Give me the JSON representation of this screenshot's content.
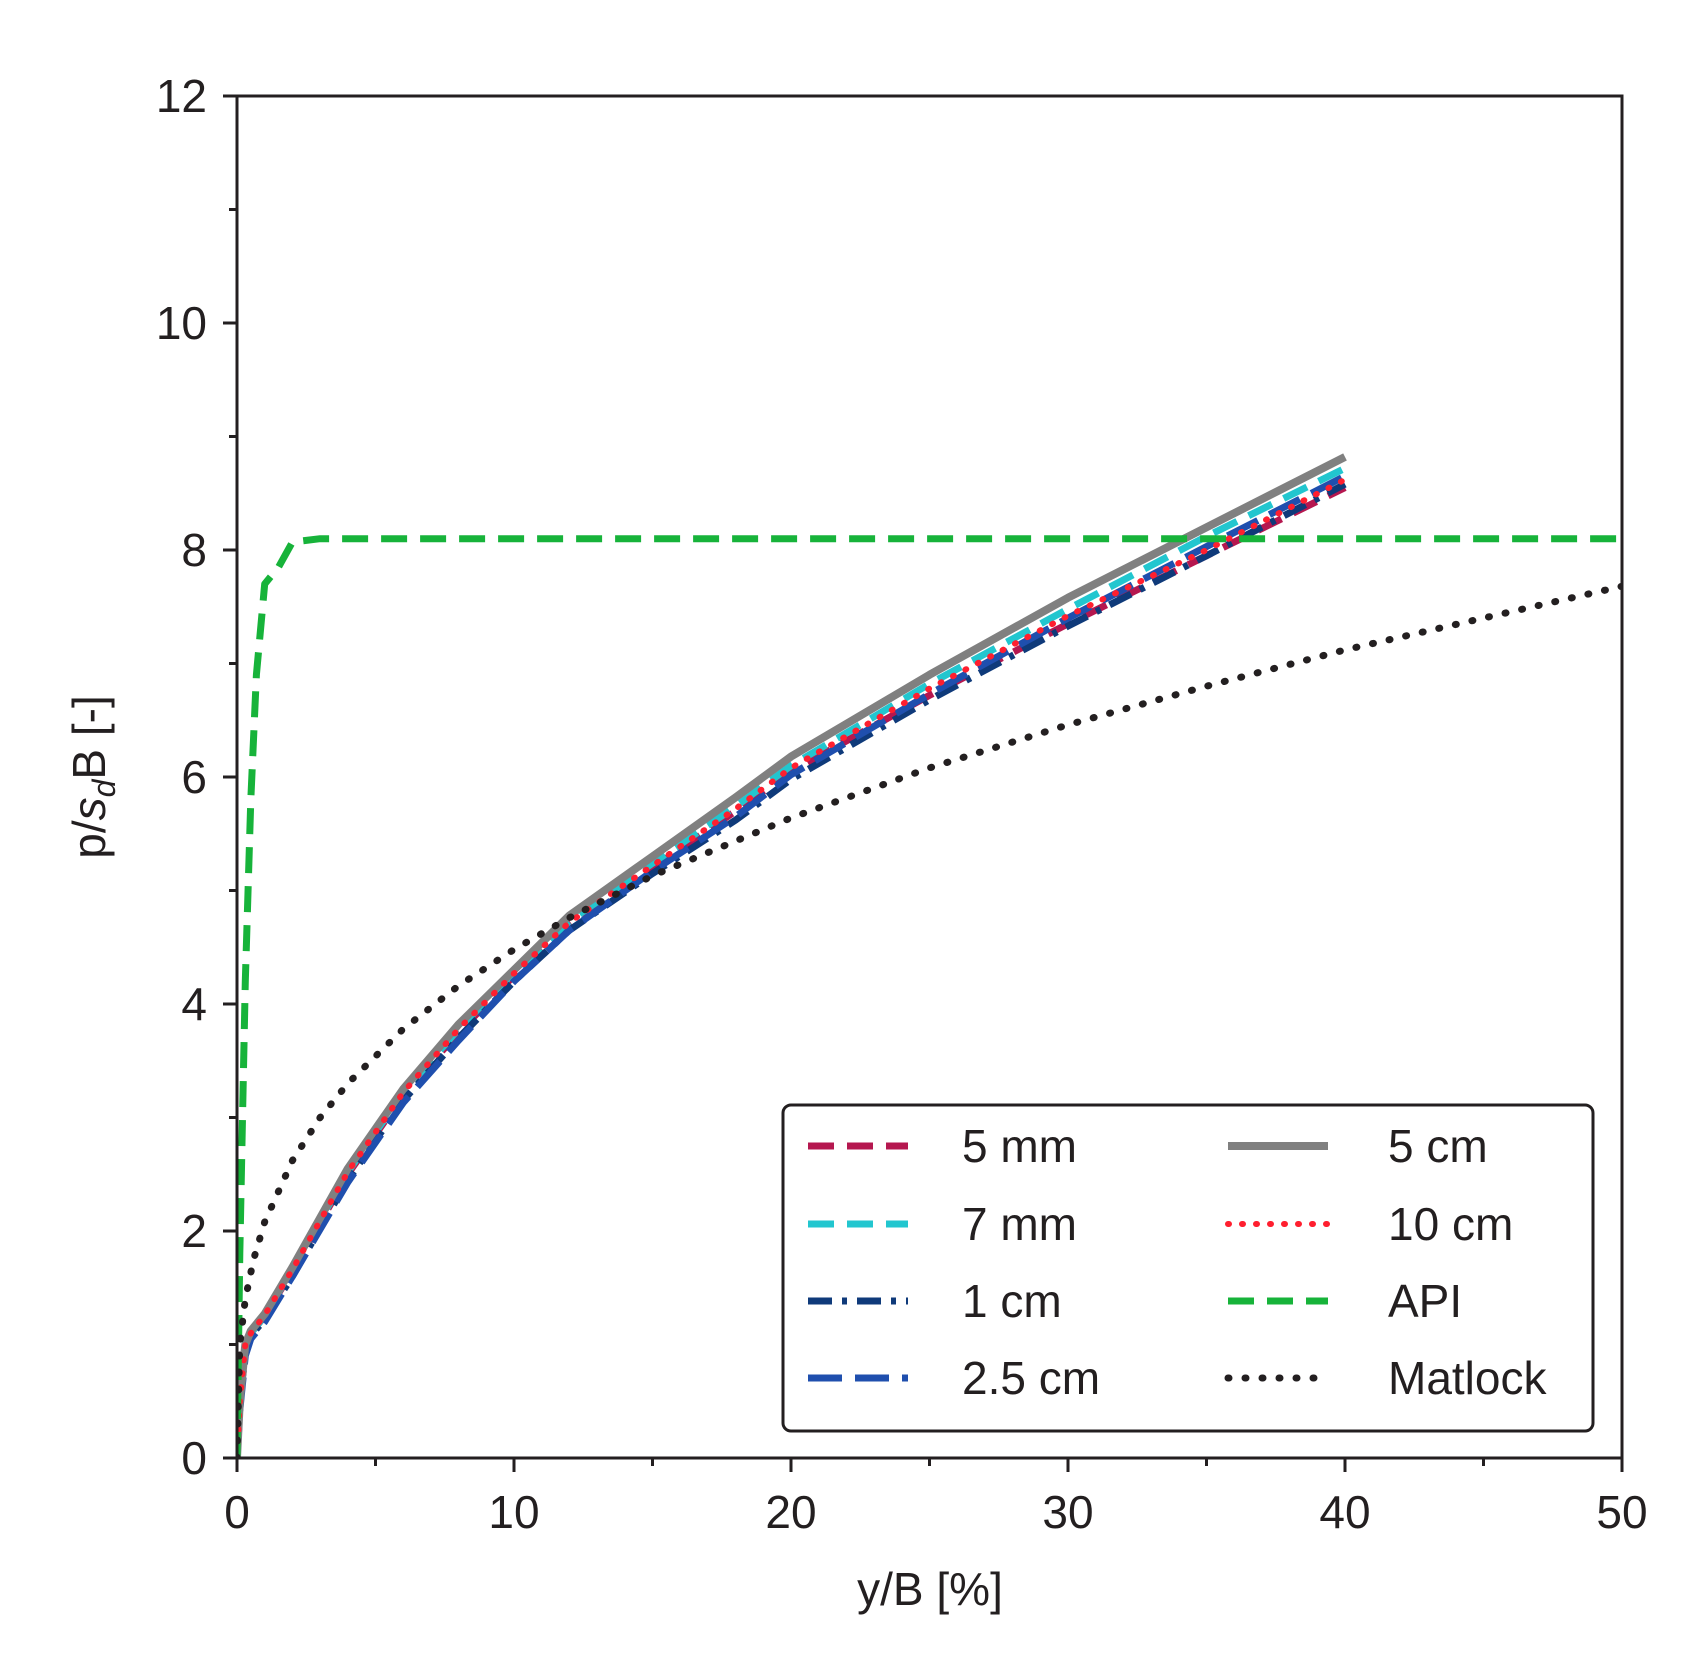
{
  "chart_data": {
    "type": "line",
    "title": "",
    "xlabel": "y/B [%]",
    "ylabel": {
      "prefix": "p/",
      "italic": "s",
      "subscript": "d",
      "suffix": "B [-]"
    },
    "xlim": [
      0,
      50
    ],
    "ylim": [
      0,
      12
    ],
    "xticks": [
      "0",
      "10",
      "20",
      "30",
      "40",
      "50"
    ],
    "yticks": [
      "0",
      "2",
      "4",
      "6",
      "8",
      "10",
      "12"
    ],
    "grid": false,
    "legend_position": "bottom-right",
    "series": [
      {
        "name": "5 mm",
        "color": "#b5174f",
        "style": "dashed",
        "x": [
          0,
          0.1,
          0.3,
          0.5,
          1,
          2,
          4,
          6,
          8,
          10,
          12,
          15,
          18,
          20,
          25,
          30,
          35,
          40
        ],
        "y": [
          0,
          0.5,
          1.0,
          1.1,
          1.25,
          1.65,
          2.5,
          3.2,
          3.75,
          4.25,
          4.7,
          5.2,
          5.7,
          6.05,
          6.72,
          7.35,
          7.95,
          8.55
        ]
      },
      {
        "name": "7 mm",
        "color": "#22c6cf",
        "style": "dashed",
        "x": [
          0,
          0.1,
          0.3,
          0.5,
          1,
          2,
          4,
          6,
          8,
          10,
          12,
          15,
          18,
          20,
          25,
          30,
          35,
          40
        ],
        "y": [
          0,
          0.5,
          1.0,
          1.1,
          1.25,
          1.67,
          2.52,
          3.22,
          3.78,
          4.28,
          4.73,
          5.24,
          5.74,
          6.1,
          6.82,
          7.48,
          8.12,
          8.72
        ]
      },
      {
        "name": "1 cm",
        "color": "#0f3a7a",
        "style": "dashdot",
        "x": [
          0,
          0.1,
          0.3,
          0.5,
          1,
          2,
          4,
          6,
          8,
          10,
          12,
          15,
          18,
          20,
          25,
          30,
          35,
          40
        ],
        "y": [
          0,
          0.45,
          0.95,
          1.08,
          1.22,
          1.6,
          2.45,
          3.15,
          3.7,
          4.2,
          4.65,
          5.15,
          5.62,
          5.98,
          6.68,
          7.33,
          7.95,
          8.58
        ]
      },
      {
        "name": "2.5 cm",
        "color": "#1f4fae",
        "style": "longdash",
        "x": [
          0,
          0.1,
          0.3,
          0.5,
          1,
          2,
          4,
          6,
          8,
          10,
          12,
          15,
          18,
          20,
          25,
          30,
          35,
          40
        ],
        "y": [
          0,
          0.42,
          0.9,
          1.05,
          1.2,
          1.6,
          2.43,
          3.13,
          3.68,
          4.2,
          4.65,
          5.17,
          5.65,
          6.02,
          6.73,
          7.4,
          8.03,
          8.65
        ]
      },
      {
        "name": "5 cm",
        "color": "#808080",
        "style": "solid",
        "x": [
          0,
          0.1,
          0.3,
          0.5,
          1,
          2,
          4,
          6,
          8,
          10,
          12,
          15,
          18,
          20,
          25,
          30,
          35,
          40
        ],
        "y": [
          0,
          0.5,
          1.0,
          1.12,
          1.27,
          1.68,
          2.55,
          3.25,
          3.82,
          4.3,
          4.78,
          5.3,
          5.82,
          6.18,
          6.9,
          7.58,
          8.2,
          8.82
        ]
      },
      {
        "name": "10 cm",
        "color": "#ff1f2f",
        "style": "dotted",
        "x": [
          0,
          0.1,
          0.3,
          0.5,
          1,
          2,
          4,
          6,
          8,
          10,
          12,
          15,
          18,
          20,
          25,
          30,
          35,
          40
        ],
        "y": [
          0,
          0.5,
          1.0,
          1.1,
          1.26,
          1.66,
          2.52,
          3.22,
          3.78,
          4.27,
          4.72,
          5.22,
          5.72,
          6.08,
          6.78,
          7.42,
          8.0,
          8.62
        ]
      },
      {
        "name": "API",
        "color": "#17b33a",
        "style": "dashed",
        "x": [
          0,
          0.1,
          0.2,
          0.3,
          0.5,
          0.7,
          1.0,
          1.5,
          2.0,
          3.0,
          50
        ],
        "y": [
          0,
          1.8,
          3.0,
          4.2,
          5.8,
          6.9,
          7.7,
          7.85,
          8.07,
          8.1,
          8.1
        ]
      },
      {
        "name": "Matlock",
        "color": "#231f20",
        "style": "dots",
        "x": [
          0,
          0.1,
          0.3,
          0.6,
          1,
          2,
          3,
          4,
          6,
          8,
          10,
          12,
          15,
          20,
          25,
          30,
          35,
          40,
          45,
          50
        ],
        "y": [
          0,
          1.0,
          1.4,
          1.75,
          2.08,
          2.62,
          3.0,
          3.3,
          3.78,
          4.16,
          4.48,
          4.76,
          5.13,
          5.64,
          6.08,
          6.46,
          6.8,
          7.12,
          7.4,
          7.68
        ]
      }
    ]
  }
}
